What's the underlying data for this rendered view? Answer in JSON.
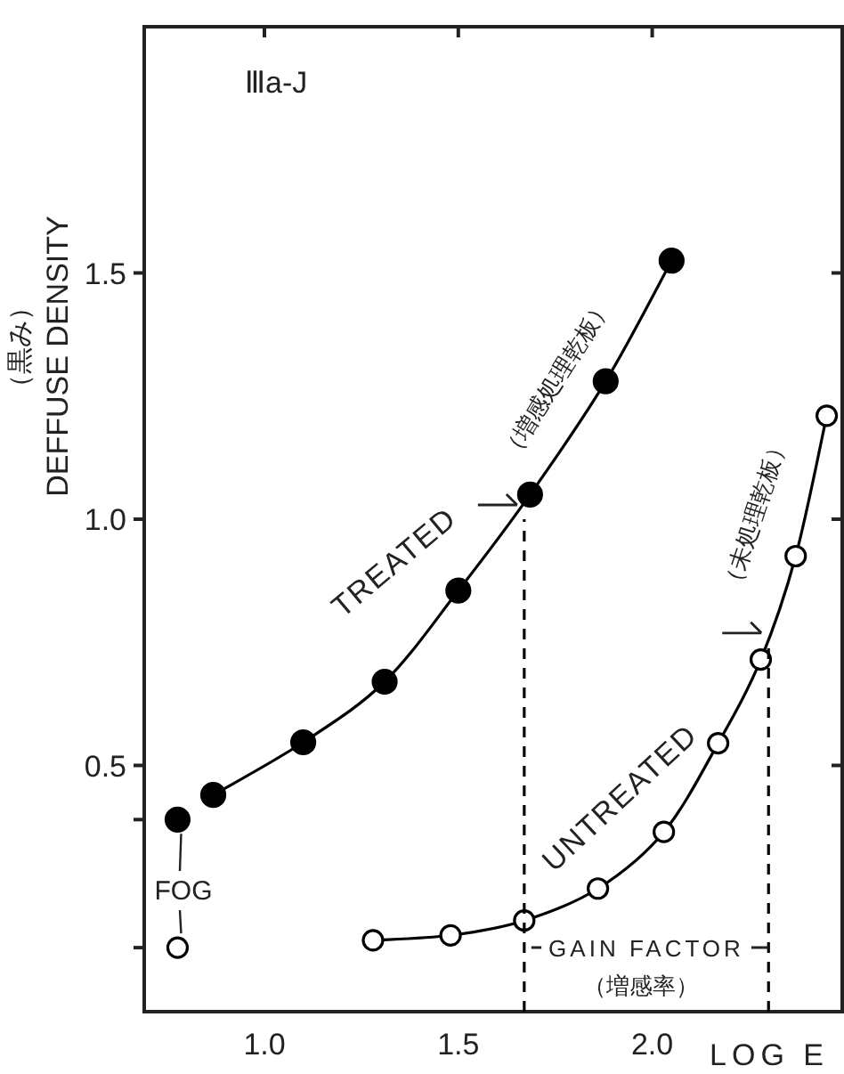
{
  "chart_data": {
    "type": "line",
    "xlabel": "LOG E",
    "ylabel": "DEFFUSE  DENSITY",
    "xlim": [
      0.69,
      2.49
    ],
    "ylim": [
      0,
      2.0
    ],
    "xticks": [
      {
        "value": 1.0,
        "label": "1.0"
      },
      1.5,
      {
        "value": 2.0,
        "label": "2.0"
      }
    ],
    "yticks": [
      0.5,
      {
        "value": 1.0,
        "label": "1.0"
      },
      1.5,
      {
        "value": 0.39,
        "label": null
      },
      {
        "value": 0.13,
        "label": null
      }
    ],
    "grid": false,
    "marker": "circle",
    "series": [
      {
        "type": "line",
        "color": "#000000",
        "x": [
          0.868,
          1.1,
          1.31,
          1.5,
          1.685,
          1.88,
          2.05
        ],
        "values": [
          0.44,
          0.547,
          0.67,
          0.855,
          1.05,
          1.28,
          1.525
        ]
      },
      {
        "type": "scatter",
        "color": "#000000",
        "x": [
          0.776
        ],
        "values": [
          0.39
        ]
      },
      {
        "type": "line",
        "color": "#000000",
        "colors": [
          "#ffffff",
          "#ffffff",
          "#ffffff",
          "#ffffff",
          "#ffffff",
          "#ffffff",
          "#ffffff",
          "#ffffff",
          "#ffffff"
        ],
        "x": [
          1.28,
          1.48,
          1.67,
          1.86,
          2.03,
          2.17,
          2.28,
          2.37,
          2.45
        ],
        "values": [
          0.145,
          0.155,
          0.185,
          0.25,
          0.365,
          0.545,
          0.715,
          0.925,
          1.21
        ]
      },
      {
        "type": "scatter",
        "color": "#000000",
        "colors": [
          "#ffffff"
        ],
        "x": [
          0.776
        ],
        "values": [
          0.13
        ]
      },
      {
        "type": "line",
        "color": "#000000",
        "line_style": "dashed",
        "marker": "none",
        "x": [
          1.67,
          1.67
        ],
        "values": [
          0,
          1.0
        ]
      },
      {
        "type": "line",
        "color": "#000000",
        "line_style": "dashed",
        "marker": "none",
        "x": [
          2.3,
          2.3
        ],
        "values": [
          0,
          0.74
        ]
      }
    ],
    "annotations": [
      "Ⅲa-J",
      "（黒み）",
      "TREATED",
      "（増感処理乾板）",
      "UNTREATED",
      "（未処理乾板）",
      {
        "text": "FOG",
        "x": 0.776,
        "y": 0.39
      },
      "GAIN FACTOR",
      "（増感率）"
    ]
  }
}
